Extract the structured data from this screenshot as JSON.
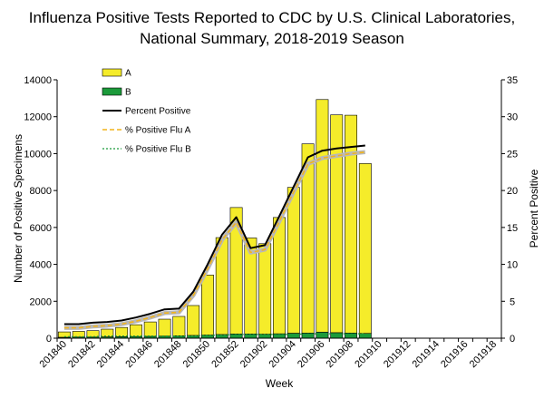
{
  "chart_data": {
    "type": "bar",
    "title": "Influenza Positive Tests Reported to CDC by U.S. Clinical Laboratories,",
    "subtitle": "National Summary,  2018-2019 Season",
    "xlabel": "Week",
    "ylabel": "Number of Positive Specimens",
    "y2label": "Percent Positive",
    "ylim": [
      0,
      14000
    ],
    "y2lim": [
      0,
      35
    ],
    "yticks": [
      0,
      2000,
      4000,
      6000,
      8000,
      10000,
      12000,
      14000
    ],
    "y2ticks": [
      0,
      5,
      10,
      15,
      20,
      25,
      30,
      35
    ],
    "stacked": true,
    "legend_position": "top-left",
    "grid": false,
    "weeks": [
      "201840",
      "201841",
      "201842",
      "201843",
      "201844",
      "201845",
      "201846",
      "201847",
      "201848",
      "201849",
      "201850",
      "201851",
      "201852",
      "201901",
      "201902",
      "201903",
      "201904",
      "201905",
      "201906",
      "201907",
      "201908",
      "201909",
      "201910",
      "201911",
      "201912",
      "201913",
      "201914",
      "201915",
      "201916",
      "201917",
      "201918"
    ],
    "tick_labels": [
      "201840",
      "201842",
      "201844",
      "201846",
      "201848",
      "201850",
      "201852",
      "201902",
      "201904",
      "201906",
      "201908",
      "201910",
      "201912",
      "201914",
      "201916",
      "201918"
    ],
    "series": [
      {
        "name": "A",
        "kind": "bar",
        "color": "#f5ec2a",
        "values": [
          290,
          310,
          350,
          420,
          500,
          640,
          780,
          920,
          1050,
          1620,
          3250,
          5250,
          6850,
          5200,
          4900,
          6300,
          7900,
          10250,
          12600,
          11800,
          11800,
          9200
        ]
      },
      {
        "name": "B",
        "kind": "bar",
        "color": "#1b9a3a",
        "values": [
          50,
          60,
          60,
          70,
          80,
          90,
          100,
          110,
          130,
          150,
          170,
          200,
          230,
          230,
          220,
          240,
          270,
          280,
          330,
          300,
          280,
          260
        ]
      },
      {
        "name": "Percent Positive",
        "kind": "line",
        "axis": "right",
        "color": "#000000",
        "values": [
          1.9,
          1.9,
          2.1,
          2.2,
          2.4,
          2.8,
          3.3,
          3.9,
          4.0,
          6.3,
          10.0,
          14.0,
          16.4,
          12.2,
          12.6,
          16.5,
          20.5,
          24.5,
          25.4,
          25.7,
          25.9,
          26.1
        ]
      },
      {
        "name": "% Positive Flu A",
        "kind": "line",
        "axis": "right",
        "color": "#f2b41b",
        "dash": true,
        "values": [
          1.4,
          1.4,
          1.6,
          1.7,
          1.9,
          2.3,
          2.8,
          3.4,
          3.5,
          5.8,
          9.4,
          13.3,
          15.7,
          11.6,
          12.0,
          15.8,
          19.8,
          23.6,
          24.4,
          24.7,
          25.0,
          25.2
        ]
      },
      {
        "name": "% Positive Flu B",
        "kind": "line",
        "axis": "right",
        "color": "#1b9a3a",
        "dash": true,
        "values": [
          0.2,
          0.2,
          0.2,
          0.3,
          0.3,
          0.3,
          0.3,
          0.3,
          0.3,
          0.3,
          0.4,
          0.4,
          0.5,
          0.5,
          0.5,
          0.5,
          0.5,
          0.6,
          0.6,
          0.6,
          0.6,
          0.6
        ]
      }
    ]
  }
}
